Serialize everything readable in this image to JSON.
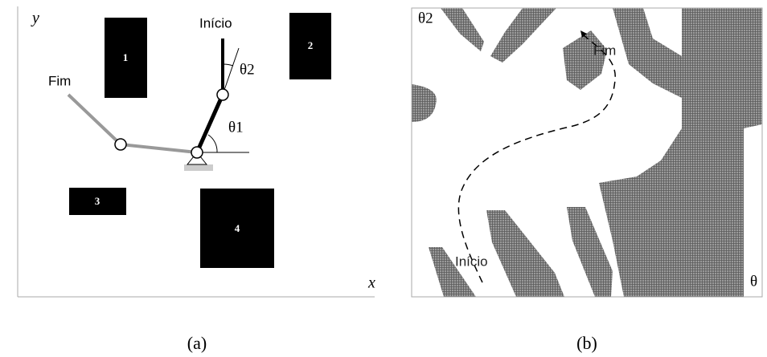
{
  "panel_a": {
    "axis_y": "y",
    "axis_x": "x",
    "obstacles": [
      "1",
      "2",
      "3",
      "4"
    ],
    "start_label": "Início",
    "end_label": "Fim",
    "theta2_label": "θ2",
    "theta1_label": "θ1",
    "caption": "(a)"
  },
  "panel_b": {
    "axis_y": "θ2",
    "axis_x": "θ",
    "end_label": "Fim",
    "start_label": "Início",
    "caption": "(b)"
  }
}
